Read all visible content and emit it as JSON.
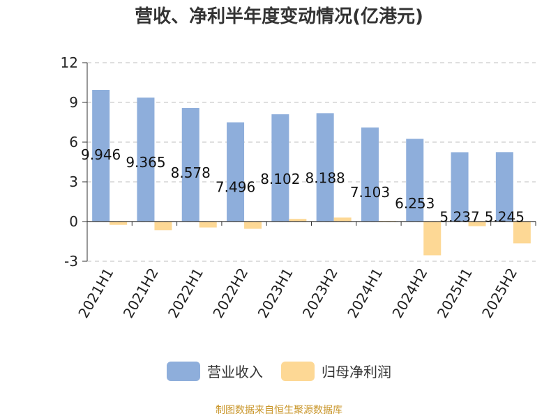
{
  "colors": {
    "revenue": "#8eaedb",
    "profit": "#fdd895",
    "grid": "#cccccc",
    "axis": "#333333",
    "text": "#222222",
    "source": "#c9962a"
  },
  "legend": {
    "revenue": "营业收入",
    "profit": "归母净利润"
  },
  "source": "制图数据来自恒生聚源数据库",
  "chart_data": {
    "type": "bar",
    "title": "营收、净利半年度变动情况(亿港元)",
    "categories": [
      "2021H1",
      "2021H2",
      "2022H1",
      "2022H2",
      "2023H1",
      "2023H2",
      "2024H1",
      "2024H2",
      "2025H1",
      "2025H2"
    ],
    "series": [
      {
        "name": "营业收入",
        "values": [
          9.946,
          9.365,
          8.578,
          7.496,
          8.102,
          8.188,
          7.103,
          6.253,
          5.237,
          5.245
        ],
        "labels": [
          "9.946",
          "9.365",
          "8.578",
          "7.496",
          "8.102",
          "8.188",
          "7.103",
          "6.253",
          "5.237",
          "5.245"
        ]
      },
      {
        "name": "归母净利润",
        "values": [
          -0.25,
          -0.65,
          -0.45,
          -0.55,
          0.2,
          0.3,
          0.05,
          -2.55,
          -0.35,
          -1.65
        ]
      }
    ],
    "ylim": [
      -3,
      12
    ],
    "yticks": [
      "-3",
      "0",
      "3",
      "6",
      "9",
      "12"
    ],
    "grid": true,
    "legend_position": "bottom"
  }
}
